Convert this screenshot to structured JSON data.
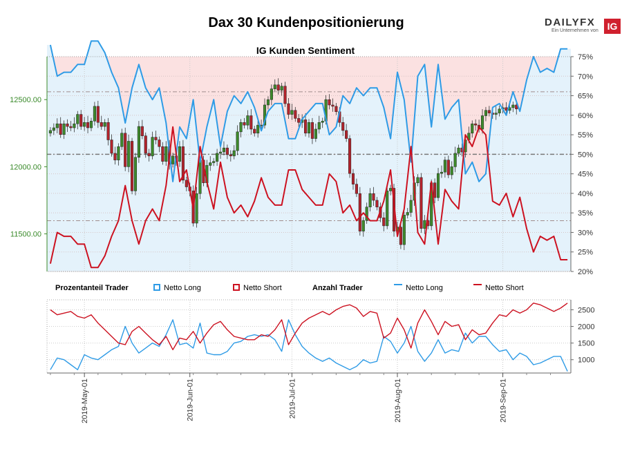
{
  "title": "Dax 30 Kundenpositionierung",
  "subtitle": "IG Kunden Sentiment",
  "logo": {
    "brand_a": "DAILY",
    "brand_b": "FX",
    "ig": "IG",
    "tagline": "Ein Unternehmen von"
  },
  "legend": {
    "pct_title": "Prozentanteil Trader",
    "pct_long": "Netto Long",
    "pct_short": "Netto Short",
    "count_title": "Anzahl Trader",
    "count_long": "Netto Long",
    "count_short": "Netto Short"
  },
  "colors": {
    "long": "#2e9be6",
    "short": "#cc1120",
    "bull": "#3d8a2b",
    "bear": "#b2232c",
    "long_area": "#e4f2fb",
    "short_area": "#fbe1e1",
    "axis_left_text": "#3a8a2a"
  },
  "chart_data": [
    {
      "type": "candlestick",
      "title": "IG Kunden Sentiment",
      "left_axis": {
        "ticks": [
          11500,
          12000,
          12500
        ],
        "tick_labels": [
          "11500.00",
          "12000.00",
          "12500.00"
        ],
        "range": [
          11220,
          12820
        ]
      },
      "right_axis": {
        "ticks": [
          20,
          25,
          30,
          35,
          40,
          45,
          50,
          55,
          60,
          65,
          70,
          75
        ],
        "tick_labels": [
          "20%",
          "25%",
          "30%",
          "35%",
          "40%",
          "45%",
          "50%",
          "55%",
          "60%",
          "65%",
          "70%",
          "75%"
        ],
        "range": [
          20,
          75
        ]
      },
      "reference_lines_pct": [
        33,
        50,
        66
      ],
      "x_ticks": [
        "2019-May-01",
        "2019-Jun-01",
        "2019-Jul-01",
        "2019-Aug-01",
        "2019-Sep-01"
      ],
      "x_tick_days": [
        0,
        31,
        61,
        92,
        123
      ],
      "price_series": {
        "name": "DAX 30",
        "day": [
          -10,
          -9,
          -8,
          -7,
          -6,
          -5,
          -4,
          -3,
          -2,
          -1,
          0,
          1,
          2,
          3,
          4,
          5,
          6,
          7,
          8,
          9,
          10,
          11,
          12,
          13,
          14,
          15,
          16,
          17,
          18,
          19,
          20,
          21,
          22,
          23,
          24,
          25,
          26,
          27,
          28,
          29,
          30,
          31,
          32,
          33,
          34,
          35,
          36,
          37,
          38,
          39,
          40,
          41,
          42,
          43,
          44,
          45,
          46,
          47,
          48,
          49,
          50,
          51,
          52,
          53,
          54,
          55,
          56,
          57,
          58,
          59,
          60,
          61,
          62,
          63,
          64,
          65,
          66,
          67,
          68,
          69,
          70,
          71,
          72,
          73,
          74,
          75,
          76,
          77,
          78,
          79,
          80,
          81,
          82,
          83,
          84,
          85,
          86,
          87,
          88,
          89,
          90,
          91,
          92,
          93,
          94,
          95,
          96,
          97,
          98,
          99,
          100,
          101,
          102,
          103,
          104,
          105,
          106,
          107,
          108,
          109,
          110,
          111,
          112,
          113,
          114,
          115,
          116,
          117,
          118,
          119,
          120,
          121,
          122,
          123,
          124,
          125,
          126,
          127,
          128,
          129,
          130,
          131,
          132,
          133,
          134,
          135,
          136,
          137,
          138,
          139,
          140,
          141,
          142
        ],
        "close": [
          12270,
          12290,
          12320,
          12240,
          12320,
          12300,
          12290,
          12320,
          12390,
          12300,
          12330,
          12290,
          12340,
          12450,
          12330,
          12300,
          12330,
          12200,
          12100,
          12050,
          12150,
          12250,
          12000,
          12190,
          11820,
          12070,
          12300,
          12230,
          12100,
          12080,
          12220,
          12200,
          12150,
          12040,
          12150,
          12020,
          12080,
          12040,
          12150,
          11900,
          11850,
          11820,
          11580,
          11800,
          12050,
          11880,
          12010,
          12030,
          12040,
          12100,
          12110,
          12140,
          12090,
          12080,
          12120,
          12260,
          12330,
          12310,
          12380,
          12280,
          12250,
          12310,
          12310,
          12460,
          12500,
          12580,
          12610,
          12570,
          12600,
          12470,
          12390,
          12420,
          12360,
          12330,
          12350,
          12250,
          12330,
          12210,
          12280,
          12330,
          12340,
          12500,
          12460,
          12450,
          12410,
          12330,
          12270,
          12210,
          11950,
          11870,
          11800,
          11520,
          11600,
          11700,
          11800,
          11750,
          11700,
          11620,
          11560,
          11820,
          11840,
          11520,
          11550,
          11420,
          11640,
          11660,
          11750,
          11880,
          11920,
          11540,
          11600,
          11560,
          11880,
          11770,
          11950,
          11960,
          12050,
          11940,
          12000,
          12100,
          12140,
          12110,
          12200,
          12250,
          12320,
          12310,
          12280,
          12380,
          12420,
          12400,
          12390,
          12400,
          12430,
          12440,
          12420,
          12440,
          12460,
          12430
        ],
        "open": [
          12250,
          12270,
          12290,
          12320,
          12240,
          12320,
          12300,
          12290,
          12320,
          12390,
          12300,
          12330,
          12290,
          12340,
          12450,
          12330,
          12300,
          12330,
          12200,
          12100,
          12050,
          12150,
          12250,
          12000,
          12190,
          11820,
          12070,
          12300,
          12230,
          12100,
          12080,
          12220,
          12200,
          12150,
          12040,
          12150,
          12020,
          12080,
          12040,
          12150,
          11900,
          11850,
          11820,
          11580,
          11800,
          12050,
          11880,
          12010,
          12030,
          12040,
          12100,
          12110,
          12140,
          12090,
          12080,
          12120,
          12260,
          12330,
          12310,
          12380,
          12280,
          12250,
          12310,
          12310,
          12460,
          12500,
          12580,
          12610,
          12570,
          12600,
          12470,
          12390,
          12420,
          12360,
          12330,
          12350,
          12250,
          12330,
          12210,
          12280,
          12330,
          12340,
          12500,
          12460,
          12450,
          12410,
          12330,
          12270,
          12210,
          11950,
          11870,
          11800,
          11520,
          11600,
          11700,
          11800,
          11750,
          11700,
          11620,
          11560,
          11820,
          11840,
          11520,
          11550,
          11420,
          11640,
          11660,
          11750,
          11880,
          11920,
          11540,
          11600,
          11560,
          11880,
          11770,
          11950,
          11960,
          12050,
          11940,
          12000,
          12100,
          12140,
          12110,
          12200,
          12250,
          12320,
          12310,
          12280,
          12380,
          12420,
          12400,
          12390,
          12400,
          12430,
          12440,
          12420,
          12440,
          12460
        ]
      },
      "long_pct_series": {
        "name": "Netto Long",
        "day": [
          -10,
          -8,
          -6,
          -4,
          -2,
          0,
          2,
          4,
          6,
          8,
          10,
          12,
          14,
          16,
          18,
          20,
          22,
          24,
          26,
          28,
          30,
          32,
          34,
          36,
          38,
          40,
          42,
          44,
          46,
          48,
          50,
          52,
          54,
          56,
          58,
          60,
          62,
          64,
          66,
          68,
          70,
          72,
          74,
          76,
          78,
          80,
          82,
          84,
          86,
          88,
          90,
          92,
          94,
          96,
          98,
          100,
          102,
          104,
          106,
          108,
          110,
          112,
          114,
          116,
          118,
          120,
          122,
          124,
          126,
          128,
          130,
          132,
          134,
          136,
          138,
          140,
          142
        ],
        "values": [
          78,
          70,
          71,
          71,
          73,
          73,
          79,
          79,
          76,
          71,
          67,
          58,
          67,
          73,
          67,
          64,
          67,
          58,
          43,
          57,
          54,
          64,
          48,
          57,
          64,
          52,
          61,
          65,
          63,
          66,
          62,
          56,
          61,
          63,
          63,
          54,
          54,
          59,
          61,
          63,
          63,
          55,
          57,
          65,
          63,
          67,
          65,
          67,
          67,
          62,
          54,
          71,
          64,
          48,
          70,
          73,
          57,
          73,
          59,
          62,
          64,
          45,
          48,
          43,
          45,
          62,
          63,
          60,
          66,
          61,
          69,
          75,
          71,
          72,
          71,
          77,
          77
        ]
      },
      "short_pct_series": {
        "name": "Netto Short",
        "day": [
          -10,
          -8,
          -6,
          -4,
          -2,
          0,
          2,
          4,
          6,
          8,
          10,
          12,
          14,
          16,
          18,
          20,
          22,
          24,
          26,
          28,
          30,
          32,
          34,
          36,
          38,
          40,
          42,
          44,
          46,
          48,
          50,
          52,
          54,
          56,
          58,
          60,
          62,
          64,
          66,
          68,
          70,
          72,
          74,
          76,
          78,
          80,
          82,
          84,
          86,
          88,
          90,
          92,
          94,
          96,
          98,
          100,
          102,
          104,
          106,
          108,
          110,
          112,
          114,
          116,
          118,
          120,
          122,
          124,
          126,
          128,
          130,
          132,
          134,
          136,
          138,
          140,
          142
        ],
        "values": [
          22,
          30,
          29,
          29,
          27,
          27,
          21,
          21,
          24,
          29,
          33,
          42,
          33,
          27,
          33,
          36,
          33,
          42,
          57,
          43,
          46,
          36,
          52,
          43,
          36,
          48,
          39,
          35,
          37,
          34,
          38,
          44,
          39,
          37,
          37,
          46,
          46,
          41,
          39,
          37,
          37,
          45,
          43,
          35,
          37,
          33,
          35,
          33,
          33,
          38,
          46,
          29,
          36,
          52,
          30,
          27,
          43,
          27,
          41,
          38,
          36,
          55,
          52,
          57,
          55,
          38,
          37,
          40,
          34,
          39,
          31,
          25,
          29,
          28,
          29,
          23,
          23
        ]
      }
    },
    {
      "type": "line",
      "title": "Anzahl Trader",
      "y_axis": {
        "ticks": [
          1000,
          1500,
          2000,
          2500
        ],
        "tick_labels": [
          "1000",
          "1500",
          "2000",
          "2500"
        ],
        "range": [
          600,
          2800
        ]
      },
      "series": [
        {
          "name": "Netto Long",
          "day": [
            -10,
            -8,
            -6,
            -4,
            -2,
            0,
            2,
            4,
            6,
            8,
            10,
            12,
            14,
            16,
            18,
            20,
            22,
            24,
            26,
            28,
            30,
            32,
            34,
            36,
            38,
            40,
            42,
            44,
            46,
            48,
            50,
            52,
            54,
            56,
            58,
            60,
            62,
            64,
            66,
            68,
            70,
            72,
            74,
            76,
            78,
            80,
            82,
            84,
            86,
            88,
            90,
            92,
            94,
            96,
            98,
            100,
            102,
            104,
            106,
            108,
            110,
            112,
            114,
            116,
            118,
            120,
            122,
            124,
            126,
            128,
            130,
            132,
            134,
            136,
            138,
            140,
            142
          ],
          "values": [
            700,
            1050,
            1000,
            850,
            700,
            1150,
            1050,
            1000,
            1150,
            1300,
            1400,
            2000,
            1500,
            1200,
            1350,
            1500,
            1400,
            1750,
            2200,
            1450,
            1500,
            1350,
            2100,
            1200,
            1150,
            1150,
            1250,
            1500,
            1550,
            1700,
            1750,
            1700,
            1750,
            1600,
            1250,
            2200,
            1750,
            1400,
            1200,
            1050,
            950,
            1050,
            900,
            800,
            700,
            800,
            1000,
            900,
            950,
            1700,
            1550,
            1200,
            1500,
            2000,
            1250,
            950,
            1200,
            1600,
            1200,
            1300,
            1250,
            1800,
            1500,
            1700,
            1700,
            1450,
            1250,
            1300,
            1000,
            1200,
            1100,
            850,
            900,
            1000,
            1100,
            1100,
            650
          ]
        },
        {
          "name": "Netto Short",
          "day": [
            -10,
            -8,
            -6,
            -4,
            -2,
            0,
            2,
            4,
            6,
            8,
            10,
            12,
            14,
            16,
            18,
            20,
            22,
            24,
            26,
            28,
            30,
            32,
            34,
            36,
            38,
            40,
            42,
            44,
            46,
            48,
            50,
            52,
            54,
            56,
            58,
            60,
            62,
            64,
            66,
            68,
            70,
            72,
            74,
            76,
            78,
            80,
            82,
            84,
            86,
            88,
            90,
            92,
            94,
            96,
            98,
            100,
            102,
            104,
            106,
            108,
            110,
            112,
            114,
            116,
            118,
            120,
            122,
            124,
            126,
            128,
            130,
            132,
            134,
            136,
            138,
            140,
            142
          ],
          "values": [
            2500,
            2350,
            2400,
            2450,
            2300,
            2250,
            2350,
            2100,
            1900,
            1700,
            1500,
            1450,
            1850,
            2000,
            1800,
            1600,
            1450,
            1700,
            1300,
            1650,
            1600,
            1850,
            1500,
            1800,
            2050,
            2150,
            1900,
            1700,
            1650,
            1600,
            1600,
            1750,
            1700,
            1900,
            2200,
            1450,
            1800,
            2100,
            2250,
            2350,
            2450,
            2350,
            2500,
            2600,
            2650,
            2550,
            2300,
            2450,
            2400,
            1650,
            1800,
            2250,
            1900,
            1350,
            2100,
            2500,
            2150,
            1750,
            2150,
            2000,
            2050,
            1600,
            1900,
            1750,
            1800,
            2100,
            2350,
            2300,
            2500,
            2400,
            2500,
            2700,
            2650,
            2550,
            2450,
            2550,
            2700
          ]
        }
      ]
    }
  ]
}
